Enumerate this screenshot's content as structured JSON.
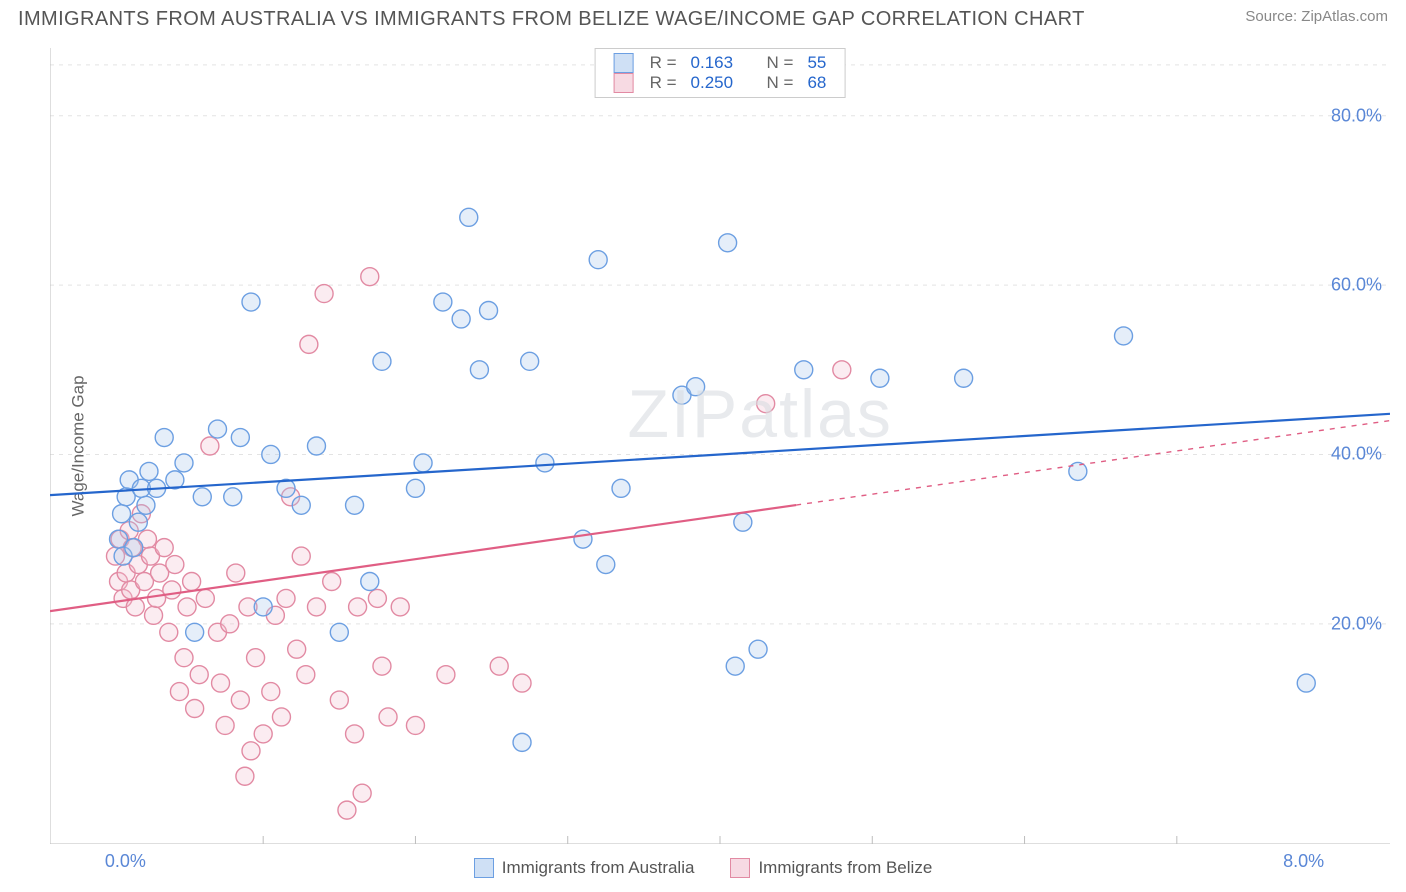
{
  "header": {
    "title": "IMMIGRANTS FROM AUSTRALIA VS IMMIGRANTS FROM BELIZE WAGE/INCOME GAP CORRELATION CHART",
    "source_prefix": "Source: ",
    "source_name": "ZipAtlas.com"
  },
  "watermark": {
    "part1": "ZIP",
    "part2": "atlas"
  },
  "chart": {
    "type": "scatter",
    "ylabel": "Wage/Income Gap",
    "xlim": [
      -0.4,
      8.4
    ],
    "ylim": [
      -6,
      88
    ],
    "xtick_labels": [
      {
        "value": 0.0,
        "label": "0.0%"
      },
      {
        "value": 8.0,
        "label": "8.0%"
      }
    ],
    "xtick_minor": [
      1,
      2,
      3,
      4,
      5,
      6,
      7
    ],
    "ytick_labels": [
      {
        "value": 20,
        "label": "20.0%"
      },
      {
        "value": 40,
        "label": "40.0%"
      },
      {
        "value": 60,
        "label": "60.0%"
      },
      {
        "value": 80,
        "label": "80.0%"
      }
    ],
    "grid_color": "#e3e3e3",
    "axis_color": "#bdbdbd",
    "background_color": "#ffffff",
    "marker_radius": 9,
    "marker_stroke_width": 1.4,
    "marker_fill_opacity": 0.3,
    "trend_line_width": 2.2,
    "series": [
      {
        "name": "Immigrants from Australia",
        "key": "australia",
        "color_stroke": "#6c9fe2",
        "color_fill": "#a8c6ec",
        "swatch_border": "#6c9fe2",
        "swatch_fill": "#cfe0f5",
        "r": "0.163",
        "n": "55",
        "trend": {
          "x1": -0.4,
          "y1": 35.2,
          "x2": 8.4,
          "y2": 44.8,
          "dash_from_x": null,
          "color": "#2566cc"
        },
        "points": [
          [
            0.05,
            30
          ],
          [
            0.07,
            33
          ],
          [
            0.08,
            28
          ],
          [
            0.1,
            35
          ],
          [
            0.12,
            37
          ],
          [
            0.15,
            29
          ],
          [
            0.18,
            32
          ],
          [
            0.2,
            36
          ],
          [
            0.23,
            34
          ],
          [
            0.25,
            38
          ],
          [
            0.3,
            36
          ],
          [
            0.35,
            42
          ],
          [
            0.42,
            37
          ],
          [
            0.48,
            39
          ],
          [
            0.55,
            19
          ],
          [
            0.6,
            35
          ],
          [
            0.7,
            43
          ],
          [
            0.8,
            35
          ],
          [
            0.85,
            42
          ],
          [
            0.92,
            58
          ],
          [
            1.0,
            22
          ],
          [
            1.05,
            40
          ],
          [
            1.15,
            36
          ],
          [
            1.25,
            34
          ],
          [
            1.35,
            41
          ],
          [
            1.5,
            19
          ],
          [
            1.6,
            34
          ],
          [
            1.7,
            25
          ],
          [
            1.78,
            51
          ],
          [
            2.0,
            36
          ],
          [
            2.05,
            39
          ],
          [
            2.18,
            58
          ],
          [
            2.3,
            56
          ],
          [
            2.35,
            68
          ],
          [
            2.42,
            50
          ],
          [
            2.48,
            57
          ],
          [
            2.7,
            6
          ],
          [
            2.75,
            51
          ],
          [
            2.85,
            39
          ],
          [
            3.1,
            30
          ],
          [
            3.2,
            63
          ],
          [
            3.25,
            27
          ],
          [
            3.35,
            36
          ],
          [
            3.75,
            47
          ],
          [
            3.84,
            48
          ],
          [
            4.05,
            65
          ],
          [
            4.1,
            15
          ],
          [
            4.15,
            32
          ],
          [
            4.25,
            17
          ],
          [
            4.55,
            50
          ],
          [
            5.05,
            49
          ],
          [
            5.6,
            49
          ],
          [
            6.35,
            38
          ],
          [
            6.65,
            54
          ],
          [
            7.85,
            13
          ]
        ]
      },
      {
        "name": "Immigrants from Belize",
        "key": "belize",
        "color_stroke": "#e28aa3",
        "color_fill": "#f3c0cf",
        "swatch_border": "#e28aa3",
        "swatch_fill": "#f7dae3",
        "r": "0.250",
        "n": "68",
        "trend": {
          "x1": -0.4,
          "y1": 21.5,
          "x2": 8.4,
          "y2": 44.0,
          "dash_from_x": 4.5,
          "color": "#e05e84"
        },
        "points": [
          [
            0.03,
            28
          ],
          [
            0.05,
            25
          ],
          [
            0.06,
            30
          ],
          [
            0.08,
            23
          ],
          [
            0.1,
            26
          ],
          [
            0.12,
            31
          ],
          [
            0.13,
            24
          ],
          [
            0.14,
            29
          ],
          [
            0.16,
            22
          ],
          [
            0.18,
            27
          ],
          [
            0.2,
            33
          ],
          [
            0.22,
            25
          ],
          [
            0.24,
            30
          ],
          [
            0.26,
            28
          ],
          [
            0.28,
            21
          ],
          [
            0.3,
            23
          ],
          [
            0.32,
            26
          ],
          [
            0.35,
            29
          ],
          [
            0.38,
            19
          ],
          [
            0.4,
            24
          ],
          [
            0.42,
            27
          ],
          [
            0.45,
            12
          ],
          [
            0.48,
            16
          ],
          [
            0.5,
            22
          ],
          [
            0.53,
            25
          ],
          [
            0.55,
            10
          ],
          [
            0.58,
            14
          ],
          [
            0.62,
            23
          ],
          [
            0.65,
            41
          ],
          [
            0.7,
            19
          ],
          [
            0.72,
            13
          ],
          [
            0.75,
            8
          ],
          [
            0.78,
            20
          ],
          [
            0.82,
            26
          ],
          [
            0.85,
            11
          ],
          [
            0.88,
            2
          ],
          [
            0.9,
            22
          ],
          [
            0.92,
            5
          ],
          [
            0.95,
            16
          ],
          [
            1.0,
            7
          ],
          [
            1.05,
            12
          ],
          [
            1.08,
            21
          ],
          [
            1.12,
            9
          ],
          [
            1.15,
            23
          ],
          [
            1.18,
            35
          ],
          [
            1.22,
            17
          ],
          [
            1.25,
            28
          ],
          [
            1.28,
            14
          ],
          [
            1.3,
            53
          ],
          [
            1.35,
            22
          ],
          [
            1.4,
            59
          ],
          [
            1.45,
            25
          ],
          [
            1.5,
            11
          ],
          [
            1.55,
            -2
          ],
          [
            1.6,
            7
          ],
          [
            1.62,
            22
          ],
          [
            1.65,
            0
          ],
          [
            1.7,
            61
          ],
          [
            1.75,
            23
          ],
          [
            1.78,
            15
          ],
          [
            1.82,
            9
          ],
          [
            1.9,
            22
          ],
          [
            2.0,
            8
          ],
          [
            2.2,
            14
          ],
          [
            2.55,
            15
          ],
          [
            2.7,
            13
          ],
          [
            4.3,
            46
          ],
          [
            4.8,
            50
          ]
        ]
      }
    ],
    "top_legend": {
      "r_text": "R =",
      "n_text": "N ="
    },
    "bottom_legend_labels": [
      "Immigrants from Australia",
      "Immigrants from Belize"
    ]
  }
}
